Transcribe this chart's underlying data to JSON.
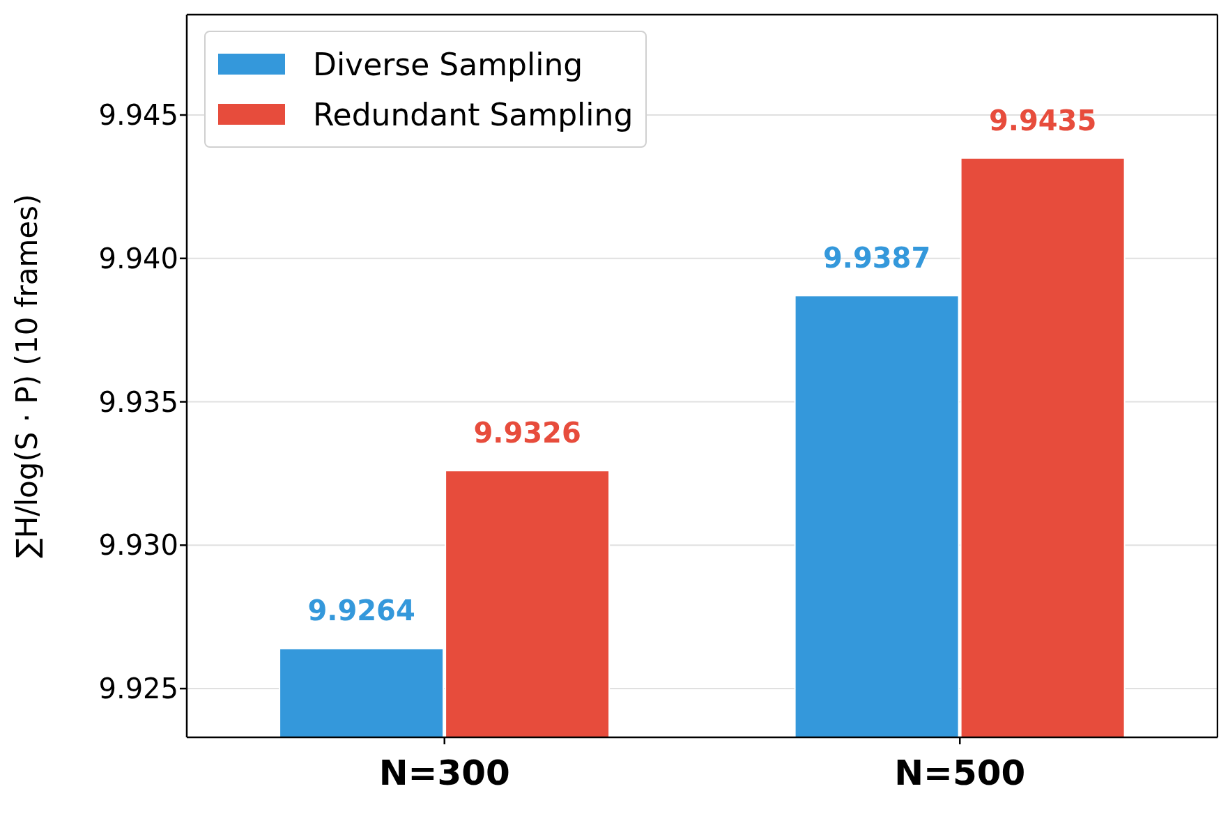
{
  "chart_data": {
    "type": "bar",
    "ylabel": "∑H/log(S · P)  (10 frames)",
    "categories": [
      "N=300",
      "N=500"
    ],
    "series": [
      {
        "name": "Diverse Sampling",
        "color": "#3498db",
        "values": [
          9.9264,
          9.9387
        ]
      },
      {
        "name": "Redundant Sampling",
        "color": "#e74c3c",
        "values": [
          9.9326,
          9.9435
        ]
      }
    ],
    "ylim": [
      9.9233,
      9.9485
    ],
    "yticks": [
      9.925,
      {
        "value": 9.93,
        "label": "9.930"
      },
      9.935,
      {
        "value": 9.94,
        "label": "9.940"
      },
      9.945
    ],
    "grid": "y",
    "legend": "top left",
    "data_labels": true
  }
}
